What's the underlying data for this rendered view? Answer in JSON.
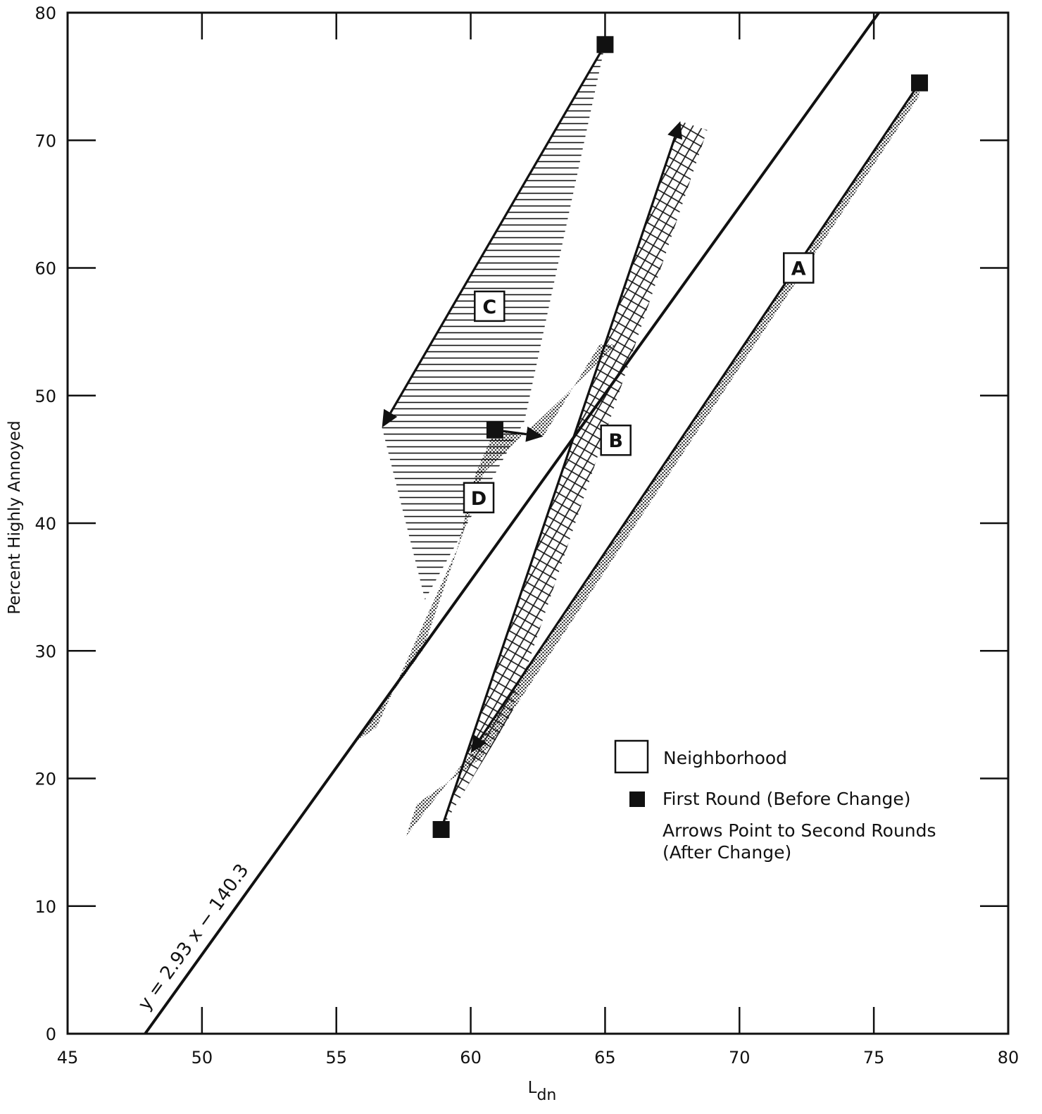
{
  "chart_data": {
    "type": "scatter",
    "title": "",
    "xlabel": "L",
    "xlabel_subscript": "dn",
    "ylabel": "Percent Highly Annoyed",
    "xlim": [
      45,
      80
    ],
    "ylim": [
      0,
      80
    ],
    "xticks": [
      "45",
      "50",
      "55",
      "60",
      "65",
      "70",
      "75",
      "80"
    ],
    "yticks": [
      "0",
      "10",
      "20",
      "30",
      "40",
      "50",
      "60",
      "70",
      "80"
    ],
    "fit_line": {
      "label": "y = 2.93 x − 140.3",
      "slope": 2.93,
      "intercept": -140.3
    },
    "neighborhoods": [
      {
        "name": "A",
        "first_round": {
          "x": 76.7,
          "y": 74.5
        },
        "second_round": {
          "x": 60.0,
          "y": 22.0
        },
        "label_at": {
          "x": 72.2,
          "y": 60.0
        }
      },
      {
        "name": "B",
        "first_round": {
          "x": 58.9,
          "y": 16.0
        },
        "second_round": {
          "x": 67.8,
          "y": 71.5
        },
        "label_at": {
          "x": 65.4,
          "y": 46.5
        }
      },
      {
        "name": "C",
        "first_round": {
          "x": 65.0,
          "y": 77.5
        },
        "second_round": {
          "x": 56.7,
          "y": 47.5
        },
        "label_at": {
          "x": 60.7,
          "y": 57.0
        }
      },
      {
        "name": "D",
        "first_round": {
          "x": 60.9,
          "y": 47.3
        },
        "second_round": {
          "x": 62.7,
          "y": 46.8
        },
        "label_at": {
          "x": 60.3,
          "y": 42.0
        }
      }
    ],
    "legend": {
      "placement": "lower-right",
      "neighborhood_label": "Neighborhood",
      "first_round_label": "First Round (Before Change)",
      "arrows_line1": "Arrows Point to Second Rounds",
      "arrows_line2": "(After Change)"
    },
    "grid": false
  }
}
